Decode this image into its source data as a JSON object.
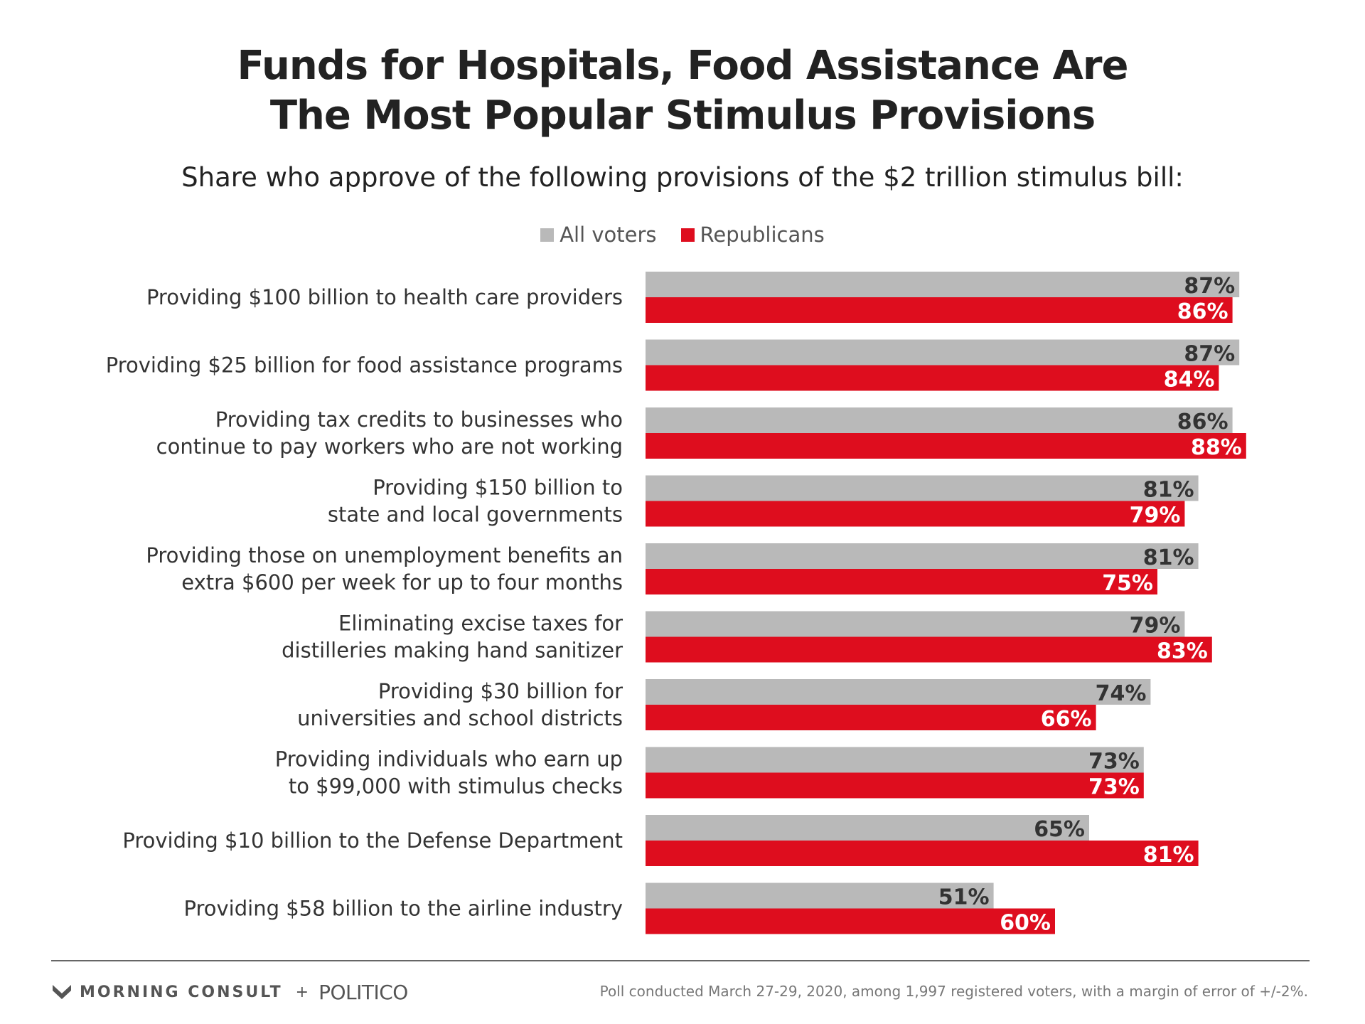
{
  "chart_data": {
    "type": "bar",
    "orientation": "horizontal",
    "title": [
      "Funds for Hospitals, Food Assistance Are",
      "The Most Popular Stimulus Provisions"
    ],
    "subtitle": "Share who approve of the following provisions of the $2 trillion stimulus bill:",
    "legend_position": "top-center",
    "grid": false,
    "xlim": [
      0,
      100
    ],
    "categories": [
      [
        "Providing $100 billion to health care providers"
      ],
      [
        "Providing $25 billion for food assistance programs"
      ],
      [
        "Providing tax credits to businesses who",
        "continue to pay workers who are not working"
      ],
      [
        "Providing $150 billion to",
        "state and local governments"
      ],
      [
        "Providing those on unemployment benefits an",
        "extra $600 per week for up to four months"
      ],
      [
        "Eliminating excise taxes for",
        "distilleries making hand sanitizer"
      ],
      [
        "Providing $30 billion for",
        "universities and school districts"
      ],
      [
        "Providing individuals who earn up",
        "to $99,000 with stimulus checks"
      ],
      [
        "Providing $10 billion to the Defense Department"
      ],
      [
        "Providing $58 billion to the airline industry"
      ]
    ],
    "series": [
      {
        "name": "All voters",
        "color": "#b9b9b9",
        "label_color": "#333333",
        "values": [
          87,
          87,
          86,
          81,
          81,
          79,
          74,
          73,
          65,
          51
        ]
      },
      {
        "name": "Republicans",
        "color": "#de0d1e",
        "label_color": "#ffffff",
        "values": [
          86,
          84,
          88,
          79,
          75,
          83,
          66,
          73,
          81,
          60
        ]
      }
    ],
    "value_suffix": "%"
  },
  "footer": {
    "brand_morning_consult": "MORNING CONSULT",
    "brand_plus": "+",
    "brand_politico": "POLITICO",
    "note": "Poll conducted March 27-29, 2020, among 1,997 registered voters, with a margin of error of +/-2%."
  }
}
